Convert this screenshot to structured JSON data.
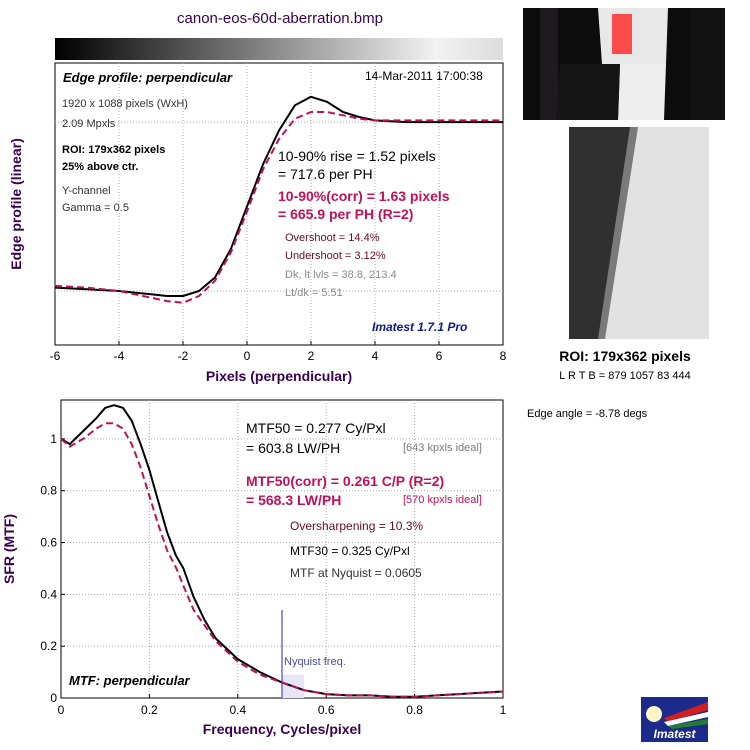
{
  "title": "canon-eos-60d-aberration.bmp",
  "colors": {
    "measured": "#000000",
    "corrected": "#c0105a",
    "annotation_dark": "#6a0a24",
    "text_gray": "#6a6a6a",
    "brand_blue": "#0a1a8c",
    "nyquist_line": "#6a6ad0",
    "axis_label": "#3a0050"
  },
  "edge_panel": {
    "heading": "Edge profile: perpendicular",
    "timestamp": "14-Mar-2011 17:00:38",
    "info": [
      "1920 x 1088 pixels (WxH)",
      "2.09 Mpxls"
    ],
    "roi": [
      "ROI: 179x362 pixels",
      "25% above ctr."
    ],
    "channel": [
      "Y-channel",
      "Gamma = 0.5"
    ],
    "rise": [
      "10-90% rise = 1.52 pixels",
      "= 717.6 per PH"
    ],
    "rise_corr": [
      "10-90%(corr) = 1.63 pixels",
      "= 665.9 per PH  (R=2)"
    ],
    "shoot": [
      "Overshoot = 14.4%",
      "Undershoot = 3.12%"
    ],
    "levels": [
      "Dk, lt lvls = 38.8, 213.4",
      "Lt/dk = 5.51"
    ],
    "brand": "Imatest 1.7.1 Pro"
  },
  "roi_panel": {
    "label": "ROI: 179x362 pixels",
    "coords": "L R  T B = 879 1057  83 444",
    "edge_angle": "Edge angle = -8.78 degs"
  },
  "mtf_panel": {
    "heading": "MTF: perpendicular",
    "mtf50": [
      "MTF50 = 0.277 Cy/Pxl",
      "= 603.8 LW/PH"
    ],
    "mtf50_ideal": "[643 kpxls ideal]",
    "mtf50_corr": [
      "MTF50(corr) = 0.261 C/P  (R=2)",
      "= 568.3 LW/PH"
    ],
    "mtf50_corr_ideal": "[570 kpxls ideal]",
    "oversharpening": "Oversharpening = 10.3%",
    "mtf30": "MTF30 = 0.325 Cy/Pxl",
    "nyquist_mtf": "MTF at Nyquist = 0.0605",
    "nyquist_label": "Nyquist freq."
  },
  "logo_text": "Imatest",
  "chart_data": [
    {
      "type": "line",
      "title": "Edge profile: perpendicular",
      "xlabel": "Pixels (perpendicular)",
      "ylabel": "Edge profile (linear)",
      "xlim": [
        -6,
        8
      ],
      "xticks": [
        -6,
        -4,
        -2,
        0,
        2,
        4,
        6,
        8
      ],
      "grid": true,
      "series": [
        {
          "x": [
            -6,
            -5,
            -4,
            -3,
            -2.5,
            -2,
            -1.5,
            -1,
            -0.5,
            0,
            0.5,
            1,
            1.5,
            2,
            2.5,
            3,
            3.5,
            4,
            5,
            6,
            7,
            8
          ],
          "y": [
            0.02,
            0.01,
            0.0,
            -0.02,
            -0.03,
            -0.03,
            0.0,
            0.08,
            0.25,
            0.5,
            0.75,
            0.95,
            1.1,
            1.15,
            1.12,
            1.06,
            1.03,
            1.01,
            1.0,
            1.0,
            1.0,
            1.0
          ]
        },
        {
          "x": [
            -6,
            -5,
            -4,
            -3,
            -2.5,
            -2,
            -1.5,
            -1,
            -0.5,
            0,
            0.5,
            1,
            1.5,
            2,
            2.5,
            3,
            3.5,
            4,
            5,
            6,
            7,
            8
          ],
          "y": [
            0.03,
            0.02,
            0.0,
            -0.04,
            -0.06,
            -0.07,
            -0.03,
            0.06,
            0.23,
            0.47,
            0.72,
            0.9,
            1.02,
            1.06,
            1.06,
            1.04,
            1.02,
            1.01,
            1.01,
            1.01,
            1.01,
            1.01
          ]
        }
      ]
    },
    {
      "type": "line",
      "title": "MTF: perpendicular",
      "xlabel": "Frequency, Cycles/pixel",
      "ylabel": "SFR (MTF)",
      "xlim": [
        0,
        1
      ],
      "ylim": [
        0,
        1.15
      ],
      "xticks": [
        0,
        0.2,
        0.4,
        0.6,
        0.8,
        1
      ],
      "yticks": [
        0,
        0.2,
        0.4,
        0.6,
        0.8,
        1
      ],
      "grid": true,
      "nyquist": 0.5,
      "series": [
        {
          "x": [
            0,
            0.02,
            0.05,
            0.08,
            0.1,
            0.12,
            0.14,
            0.16,
            0.18,
            0.2,
            0.22,
            0.24,
            0.26,
            0.277,
            0.3,
            0.325,
            0.35,
            0.4,
            0.45,
            0.5,
            0.55,
            0.6,
            0.65,
            0.7,
            0.75,
            0.8,
            0.85,
            0.9,
            0.95,
            1.0
          ],
          "y": [
            1.0,
            0.98,
            1.03,
            1.08,
            1.12,
            1.13,
            1.12,
            1.07,
            0.98,
            0.88,
            0.76,
            0.64,
            0.55,
            0.5,
            0.39,
            0.3,
            0.23,
            0.15,
            0.1,
            0.06,
            0.03,
            0.015,
            0.01,
            0.01,
            0.005,
            0.005,
            0.01,
            0.015,
            0.02,
            0.025
          ]
        },
        {
          "x": [
            0,
            0.02,
            0.05,
            0.08,
            0.1,
            0.12,
            0.14,
            0.16,
            0.18,
            0.2,
            0.22,
            0.24,
            0.261,
            0.28,
            0.3,
            0.35,
            0.4,
            0.45,
            0.5,
            0.55,
            0.6,
            0.65,
            0.7,
            0.75,
            0.8,
            0.85,
            0.9,
            0.95,
            1.0
          ],
          "y": [
            1.0,
            0.97,
            1.0,
            1.04,
            1.06,
            1.06,
            1.04,
            0.98,
            0.89,
            0.78,
            0.67,
            0.57,
            0.5,
            0.42,
            0.34,
            0.22,
            0.14,
            0.09,
            0.06,
            0.03,
            0.015,
            0.01,
            0.01,
            0.005,
            0.005,
            0.01,
            0.015,
            0.02,
            0.025
          ]
        }
      ]
    }
  ]
}
